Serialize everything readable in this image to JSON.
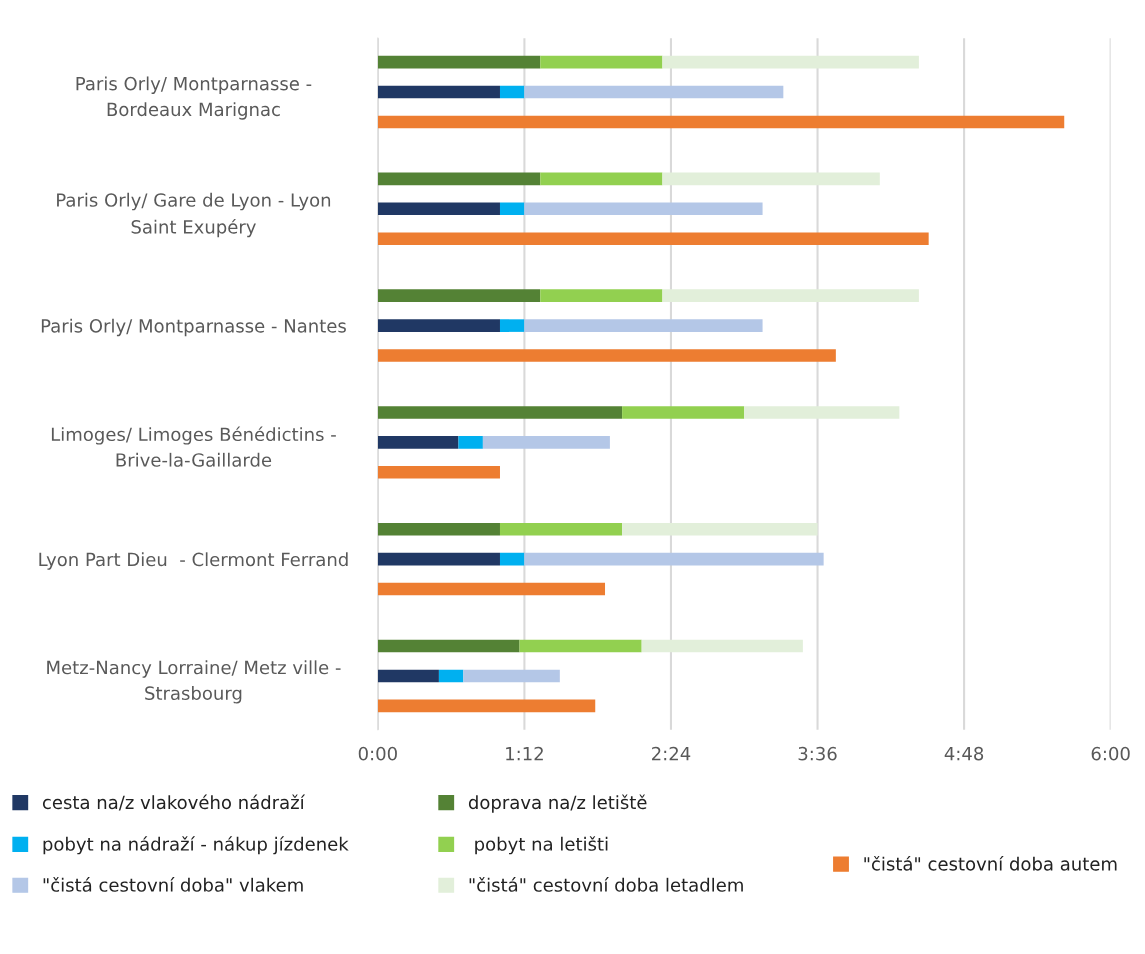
{
  "chart_data": {
    "type": "bar",
    "orientation": "horizontal",
    "stacked": true,
    "categories": [
      null,
      "Paris Orly/ Montparnasse -\nBordeaux Marignac",
      null,
      null,
      "Paris Orly/ Gare de Lyon - Lyon\nSaint Exupéry",
      null,
      null,
      "Paris Orly/ Montparnasse - Nantes",
      null,
      null,
      "Limoges/ Limoges Bénédictins -\nBrive-la-Gaillarde",
      null,
      null,
      "Lyon Part Dieu  - Clermont Ferrand",
      null,
      null,
      "Metz-Nancy Lorraine/ Metz ville -\nStrasbourg",
      null
    ],
    "series": [
      {
        "name": "cesta na/z vlakového nádraží",
        "color": "#203864",
        "values": [
          null,
          1.0,
          null,
          null,
          1.0,
          null,
          null,
          1.0,
          null,
          null,
          0.66,
          null,
          null,
          1.0,
          null,
          null,
          0.5,
          null
        ]
      },
      {
        "name": "pobyt na nádraží - nákup jízdenek",
        "color": "#00b0f0",
        "values": [
          null,
          0.2,
          null,
          null,
          0.2,
          null,
          null,
          0.2,
          null,
          null,
          0.2,
          null,
          null,
          0.2,
          null,
          null,
          0.2,
          null
        ]
      },
      {
        "name": "\"čistá cestovní doba\" vlakem",
        "color": "#b4c7e7",
        "values": [
          null,
          2.12,
          null,
          null,
          1.95,
          null,
          null,
          1.95,
          null,
          null,
          1.04,
          null,
          null,
          2.45,
          null,
          null,
          0.79,
          null
        ]
      },
      {
        "name": "doprava na/z letiště",
        "color": "#548235",
        "values": [
          1.33,
          null,
          null,
          1.33,
          null,
          null,
          1.33,
          null,
          null,
          2.0,
          null,
          null,
          1.0,
          null,
          null,
          1.16,
          null,
          null
        ]
      },
      {
        "name": " pobyt na letišti",
        "color": "#92d050",
        "values": [
          1.0,
          null,
          null,
          1.0,
          null,
          null,
          1.0,
          null,
          null,
          1.0,
          null,
          null,
          1.0,
          null,
          null,
          1.0,
          null,
          null
        ]
      },
      {
        "name": "\"čistá\" cestovní doba letadlem",
        "color": "#e2efda",
        "values": [
          2.1,
          null,
          null,
          1.78,
          null,
          null,
          2.1,
          null,
          null,
          1.27,
          null,
          null,
          1.6,
          null,
          null,
          1.32,
          null,
          null
        ]
      },
      {
        "name": "\"čistá\" cestovní doba autem",
        "color": "#ed7d31",
        "values": [
          null,
          null,
          5.62,
          null,
          null,
          4.51,
          null,
          null,
          3.75,
          null,
          null,
          1.0,
          null,
          null,
          1.86,
          null,
          null,
          1.78
        ]
      }
    ],
    "xlim": [
      0,
      6
    ],
    "xticks": [
      {
        "value": 0,
        "label": "0:00"
      },
      {
        "value": 1.2,
        "label": "1:12"
      },
      {
        "value": 2.4,
        "label": "2:24"
      },
      {
        "value": 3.6,
        "label": "3:36"
      },
      {
        "value": 4.8,
        "label": "4:48"
      },
      {
        "value": 6,
        "label": "6:00"
      }
    ],
    "grid": "x",
    "legend": "bottom"
  }
}
